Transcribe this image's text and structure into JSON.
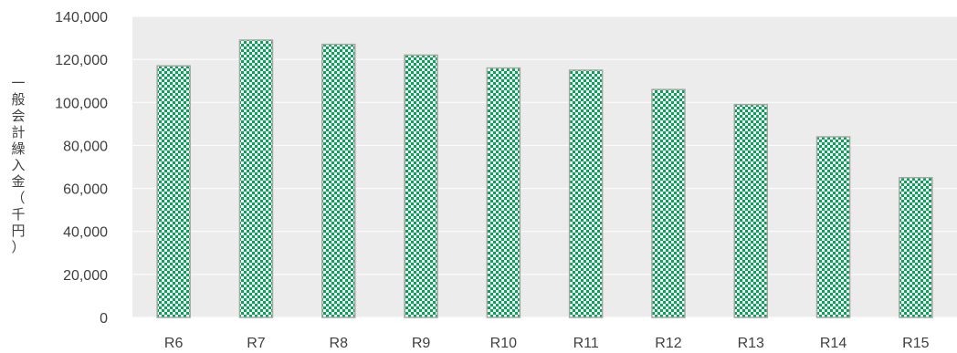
{
  "chart_data": {
    "type": "bar",
    "categories": [
      "R6",
      "R7",
      "R8",
      "R9",
      "R10",
      "R11",
      "R12",
      "R13",
      "R14",
      "R15"
    ],
    "values": [
      117000,
      129000,
      127000,
      122000,
      116000,
      115000,
      106000,
      99000,
      84000,
      65000
    ],
    "title": "",
    "xlabel": "",
    "ylabel": "一般会計繰入金（千円）",
    "ylim": [
      0,
      140000
    ],
    "yticks": [
      0,
      20000,
      40000,
      60000,
      80000,
      100000,
      120000,
      140000
    ],
    "ytick_labels": [
      "0",
      "20,000",
      "40,000",
      "60,000",
      "80,000",
      "100,000",
      "120,000",
      "140,000"
    ],
    "grid": true,
    "legend": "none",
    "colors": {
      "bar_fill": "#00a651",
      "bar_pattern_bg": "#ffffff",
      "bar_border": "#a6a6a6",
      "plot_background": "#ececec",
      "gridline": "#ffffff",
      "text": "#404040"
    }
  }
}
